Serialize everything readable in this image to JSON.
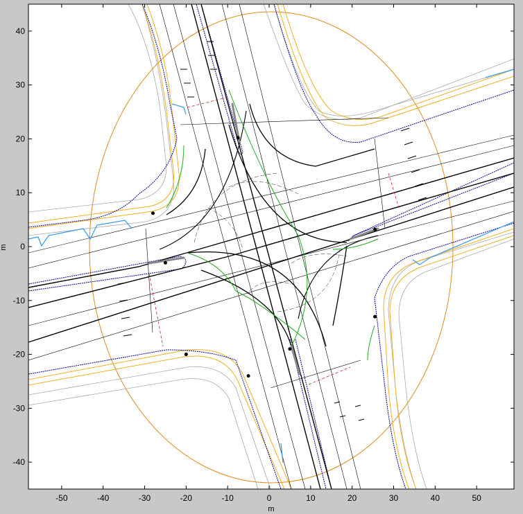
{
  "figure": {
    "xlabel": "m",
    "ylabel": "m",
    "xlim": [
      -58,
      59
    ],
    "ylim": [
      -45,
      45
    ],
    "x_ticks": [
      -50,
      -40,
      -30,
      -20,
      -10,
      0,
      10,
      20,
      30,
      40,
      50
    ],
    "y_ticks": [
      40,
      30,
      20,
      10,
      0,
      -10,
      -20,
      -30,
      -40
    ],
    "colors": {
      "figure_bg": "#c8c8c8",
      "plot_bg": "#ffffff",
      "boundary": "#e08c1e",
      "curb": "#f0b020",
      "lane_line": "#000000",
      "median": "#000090",
      "sidewalk": "#a0a0a0",
      "turn_path": "#22aa22",
      "crosswalk": "#cc2222",
      "water": "#3399ee"
    },
    "markers": [
      {
        "x": -7.5,
        "y": 20.2
      },
      {
        "x": -28,
        "y": 6.2
      },
      {
        "x": 25.5,
        "y": 3.2
      },
      {
        "x": -25,
        "y": -3
      },
      {
        "x": 25.5,
        "y": -13
      },
      {
        "x": 5,
        "y": -19
      },
      {
        "x": -20,
        "y": -20
      },
      {
        "x": -5,
        "y": -24
      }
    ]
  }
}
